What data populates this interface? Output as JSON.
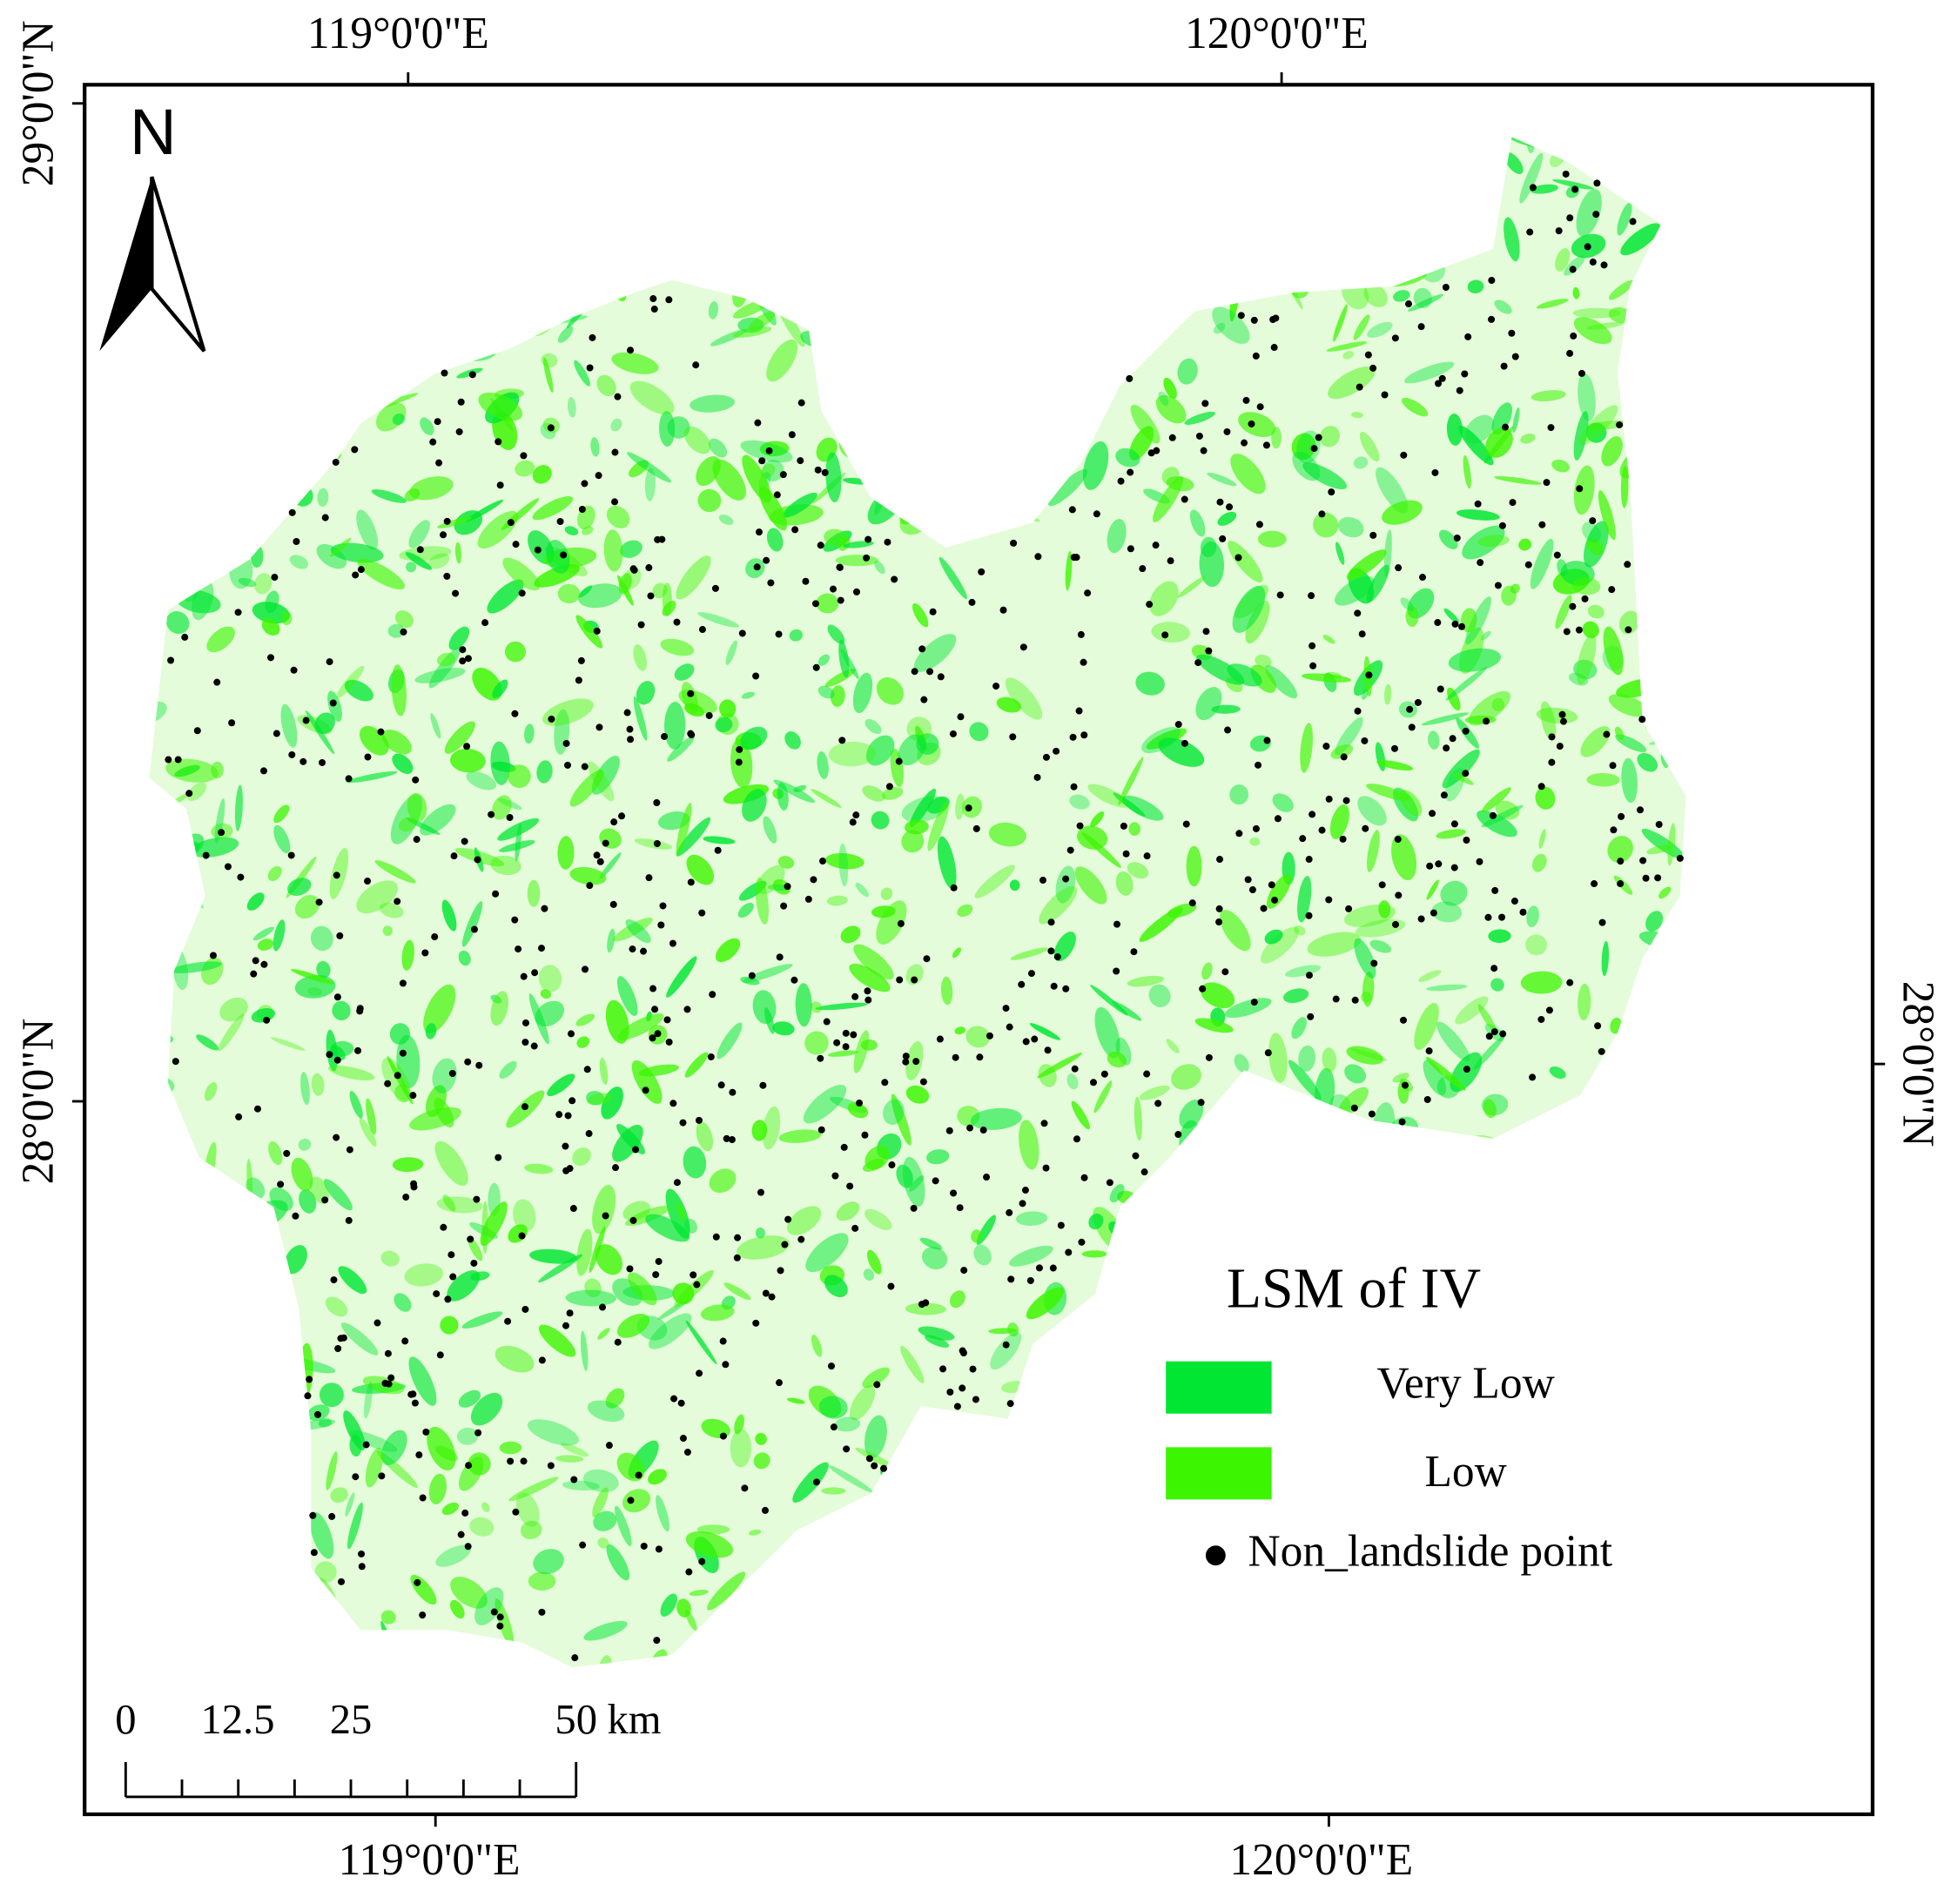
{
  "graticule": {
    "top": [
      "119°0'0\"E",
      "120°0'0\"E"
    ],
    "bottom": [
      "119°0'0\"E",
      "120°0'0\"E"
    ],
    "left": [
      "29°0'0\"N",
      "28°0'0\"N"
    ],
    "right": [
      "28°0'0\"N"
    ]
  },
  "north_arrow": "N",
  "scale_bar": {
    "labels": [
      "0",
      "12.5",
      "25",
      "50"
    ],
    "unit": "km"
  },
  "legend": {
    "title": "LSM of IV",
    "items": [
      {
        "label": "Very Low",
        "color": "#00e632"
      },
      {
        "label": "Low",
        "color": "#3cf500"
      }
    ],
    "point_label": "Non_landslide point"
  }
}
